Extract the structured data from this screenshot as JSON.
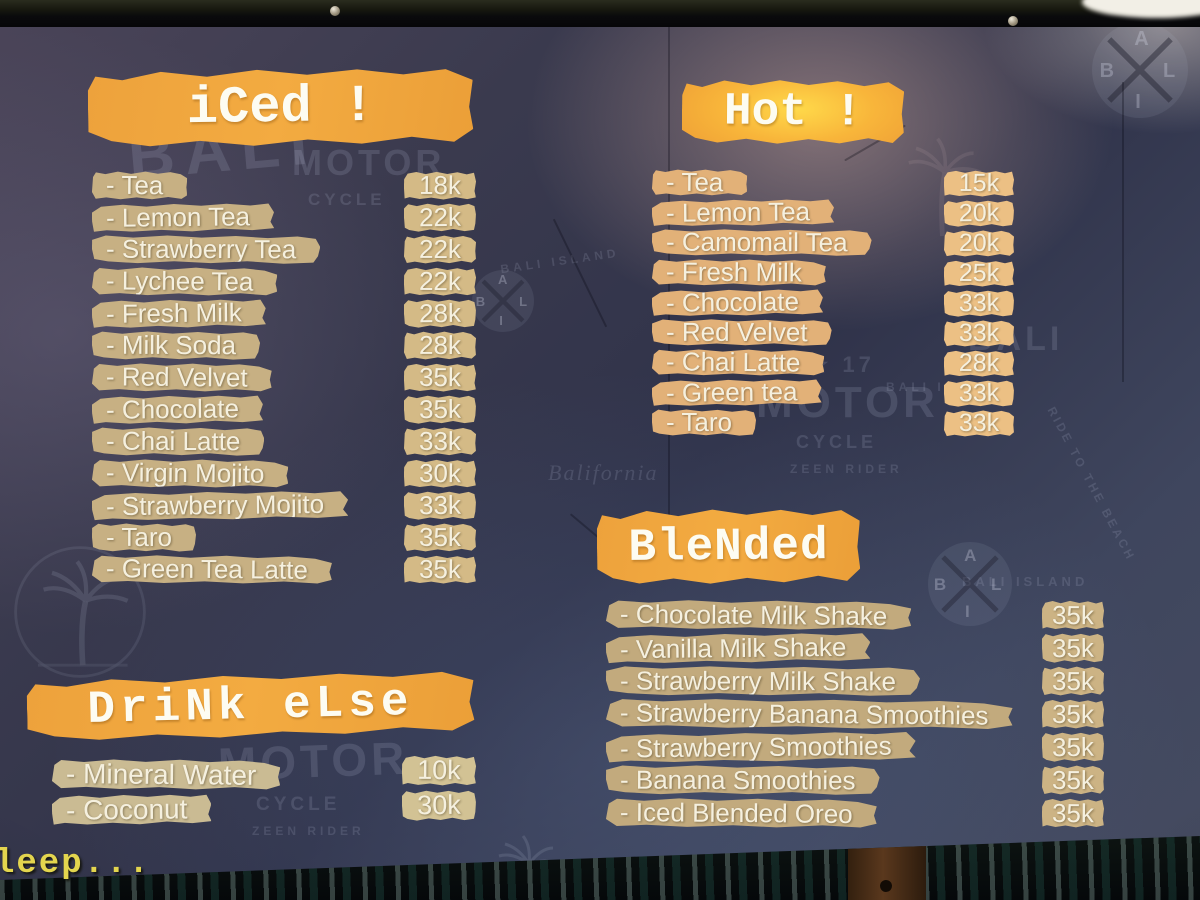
{
  "colors": {
    "board_bg": "#34374b",
    "banner_orange": "#f3ab41",
    "banner_hot_glow": "#ffd94a",
    "strip_tan": "#c7b083",
    "strip_text": "#f5f0df",
    "corner_text_yellow": "#e3d54e"
  },
  "menu": {
    "sections": [
      {
        "id": "iced",
        "title": "iCed !",
        "items": [
          {
            "label": "- Tea",
            "price": "18k"
          },
          {
            "label": "- Lemon Tea",
            "price": "22k"
          },
          {
            "label": "- Strawberry Tea",
            "price": "22k"
          },
          {
            "label": "- Lychee Tea",
            "price": "22k"
          },
          {
            "label": "- Fresh Milk",
            "price": "28k"
          },
          {
            "label": "- Milk Soda",
            "price": "28k"
          },
          {
            "label": "- Red Velvet",
            "price": "35k"
          },
          {
            "label": "- Chocolate",
            "price": "35k"
          },
          {
            "label": "- Chai Latte",
            "price": "33k"
          },
          {
            "label": "- Virgin Mojito",
            "price": "30k"
          },
          {
            "label": "- Strawberry Mojito",
            "price": "33k"
          },
          {
            "label": "- Taro",
            "price": "35k"
          },
          {
            "label": "- Green Tea Latte",
            "price": "35k"
          }
        ]
      },
      {
        "id": "hot",
        "title": "Hot !",
        "items": [
          {
            "label": "- Tea",
            "price": "15k"
          },
          {
            "label": "- Lemon Tea",
            "price": "20k"
          },
          {
            "label": "- Camomail Tea",
            "price": "20k"
          },
          {
            "label": "- Fresh Milk",
            "price": "25k"
          },
          {
            "label": "- Chocolate",
            "price": "33k"
          },
          {
            "label": "- Red Velvet",
            "price": "33k"
          },
          {
            "label": "- Chai Latte",
            "price": "28k"
          },
          {
            "label": "- Green tea",
            "price": "33k"
          },
          {
            "label": "- Taro",
            "price": "33k"
          }
        ]
      },
      {
        "id": "blended",
        "title": "BleNded",
        "items": [
          {
            "label": "- Chocolate Milk Shake",
            "price": "35k"
          },
          {
            "label": "- Vanilla Milk Shake",
            "price": "35k"
          },
          {
            "label": "- Strawberry Milk Shake",
            "price": "35k"
          },
          {
            "label": "- Strawberry Banana Smoothies",
            "price": "35k"
          },
          {
            "label": "- Strawberry Smoothies",
            "price": "35k"
          },
          {
            "label": "- Banana Smoothies",
            "price": "35k"
          },
          {
            "label": "- Iced Blended Oreo",
            "price": "35k"
          }
        ]
      },
      {
        "id": "drink_else",
        "title": "DriNk eLse",
        "items": [
          {
            "label": "- Mineral Water",
            "price": "10k"
          },
          {
            "label": "- Coconut",
            "price": "30k"
          }
        ]
      }
    ]
  },
  "overlay": {
    "corner_text": "leep..."
  },
  "background": {
    "watermarks": {
      "bali": "BALI",
      "motor": "MOTOR",
      "cycle": "CYCLE",
      "year": "20 ★ 17",
      "island": "BALI ISLAND",
      "balifornia": "Balifornia",
      "rider": "ZEEN RIDER",
      "beach": "RIDE TO THE BEACH",
      "badge_top": "A",
      "badge_left": "B",
      "badge_right": "L",
      "badge_bottom": "I"
    }
  }
}
